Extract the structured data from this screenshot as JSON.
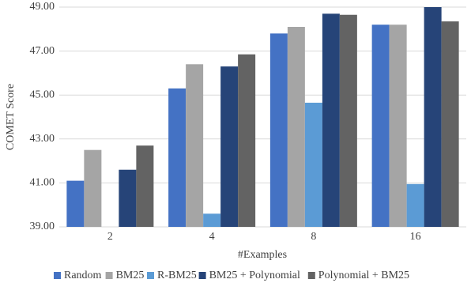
{
  "chart_data": {
    "type": "bar",
    "x_label": "#Examples",
    "y_label": "COMET Score",
    "categories": [
      "2",
      "4",
      "8",
      "16"
    ],
    "series": [
      {
        "name": "Random",
        "color": "#4472c4",
        "values": [
          41.1,
          45.3,
          47.8,
          48.2
        ]
      },
      {
        "name": "BM25",
        "color": "#a5a5a5",
        "values": [
          42.5,
          46.4,
          48.1,
          48.2
        ]
      },
      {
        "name": "R-BM25",
        "color": "#5b9bd5",
        "values": [
          39.0,
          39.6,
          44.65,
          40.95
        ]
      },
      {
        "name": "BM25 + Polynomial",
        "color": "#264478",
        "values": [
          41.6,
          46.3,
          48.7,
          49.1
        ]
      },
      {
        "name": "Polynomial + BM25",
        "color": "#636363",
        "values": [
          42.7,
          46.85,
          48.65,
          48.35
        ]
      }
    ],
    "ylim": [
      39,
      49
    ],
    "yticks": [
      {
        "value": 39,
        "label": "39.00"
      },
      {
        "value": 41,
        "label": "41.00"
      },
      {
        "value": 43,
        "label": "43.00"
      },
      {
        "value": 45,
        "label": "45.00"
      },
      {
        "value": 47,
        "label": "47.00"
      },
      {
        "value": 49,
        "label": "49.00"
      }
    ],
    "grid": true
  }
}
